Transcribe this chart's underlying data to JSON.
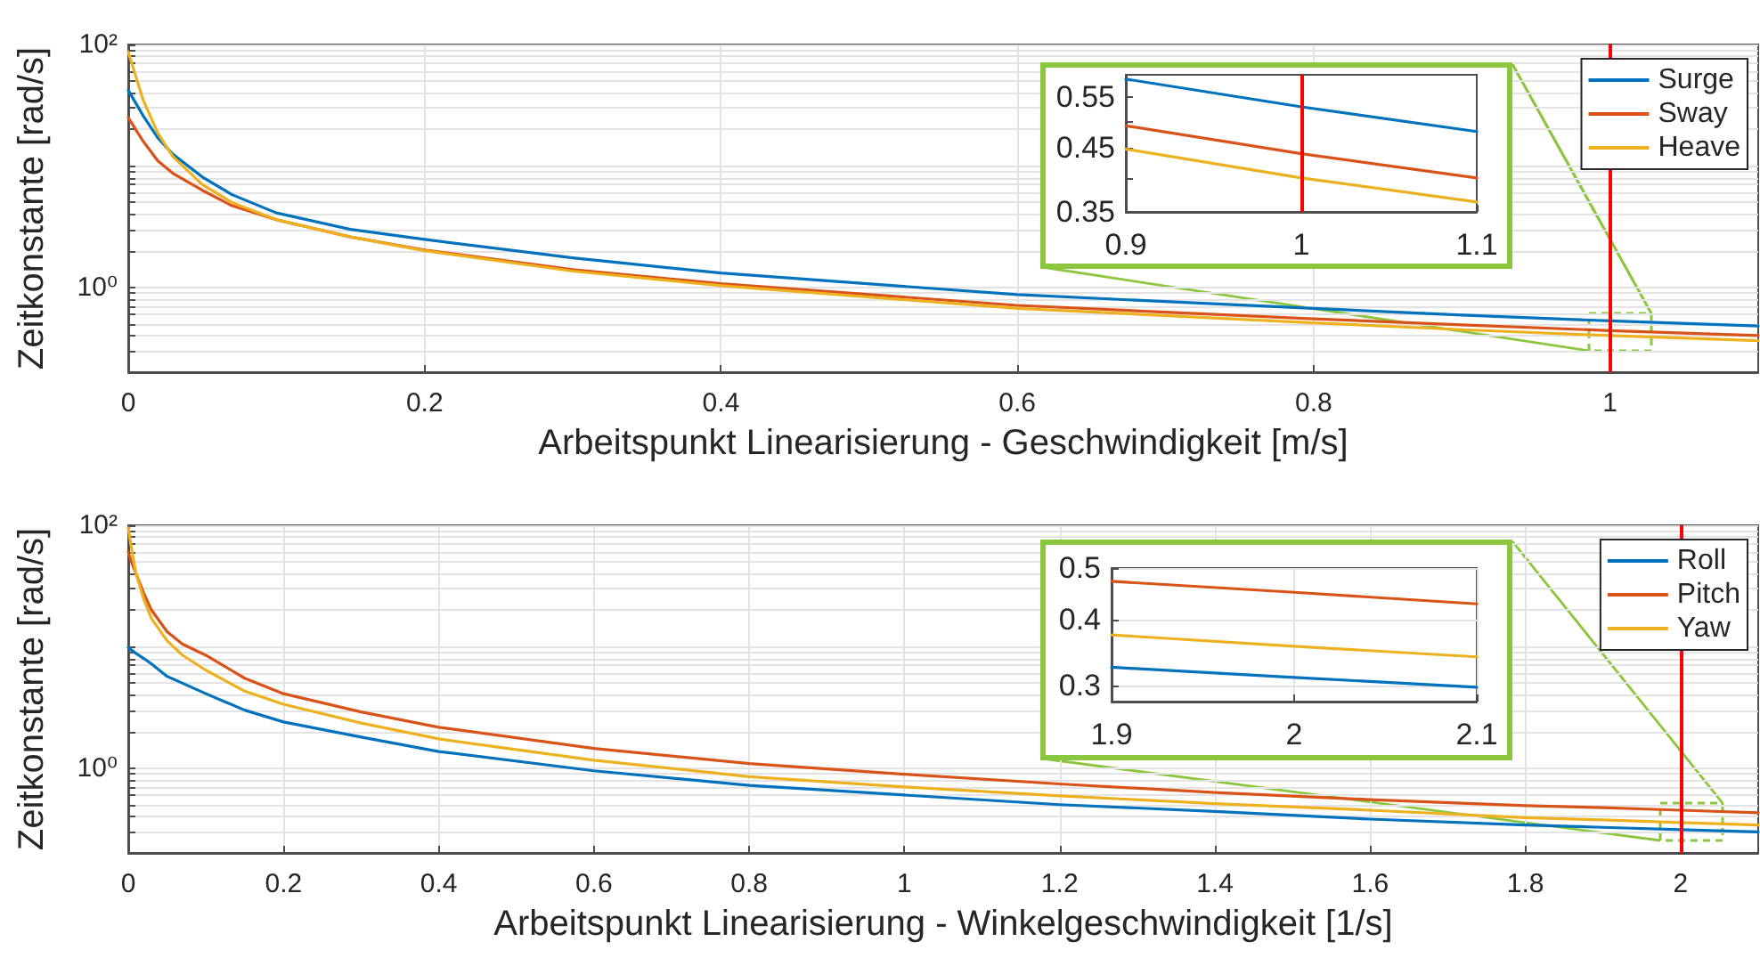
{
  "chart_data": [
    {
      "type": "line",
      "xlabel": "Arbeitspunkt Linearisierung - Geschwindigkeit [m/s]",
      "ylabel": "Zeitkonstante [rad/s]",
      "log": "y",
      "grid": true,
      "legend": "top right",
      "marker": "none",
      "line_style": "solid",
      "x": [
        0,
        0.005,
        0.01,
        0.02,
        0.03,
        0.05,
        0.07,
        0.1,
        0.15,
        0.2,
        0.3,
        0.4,
        0.6,
        0.8,
        0.9,
        1,
        1.1
      ],
      "series": [
        {
          "name": "Surge",
          "color": "#0072bd",
          "values": [
            42,
            33,
            26,
            17,
            12.5,
            8.1,
            5.8,
            4.1,
            3.0,
            2.48,
            1.75,
            1.31,
            0.87,
            0.67,
            0.59,
            0.529,
            0.48
          ]
        },
        {
          "name": "Sway",
          "color": "#d95319",
          "values": [
            25,
            20,
            16,
            11,
            8.7,
            6.3,
            4.7,
            3.6,
            2.6,
            2.03,
            1.4,
            1.07,
            0.71,
            0.55,
            0.491,
            0.44,
            0.4
          ]
        },
        {
          "name": "Heave",
          "color": "#edb120",
          "values": [
            87,
            55,
            35,
            18.6,
            12,
            7,
            5,
            3.6,
            2.6,
            2,
            1.36,
            1.03,
            0.67,
            0.51,
            0.448,
            0.4,
            0.364
          ]
        }
      ],
      "xlim": [
        0,
        1.1
      ],
      "xticks": [
        0,
        0.2,
        0.4,
        0.6,
        0.8,
        1
      ],
      "ylim": [
        0.2,
        100
      ],
      "yticks": [
        {
          "value": 0.2,
          "label": null
        },
        {
          "value": 0.3,
          "label": null
        },
        {
          "value": 0.4,
          "label": null
        },
        {
          "value": 0.5,
          "label": null
        },
        {
          "value": 0.6,
          "label": null
        },
        {
          "value": 0.7,
          "label": null
        },
        {
          "value": 0.8,
          "label": null
        },
        {
          "value": 0.9,
          "label": null
        },
        {
          "value": 1,
          "label": "10⁰"
        },
        {
          "value": 2,
          "label": null
        },
        {
          "value": 3,
          "label": null
        },
        {
          "value": 4,
          "label": null
        },
        {
          "value": 5,
          "label": null
        },
        {
          "value": 6,
          "label": null
        },
        {
          "value": 7,
          "label": null
        },
        {
          "value": 8,
          "label": null
        },
        {
          "value": 9,
          "label": null
        },
        {
          "value": 10,
          "label": null
        },
        {
          "value": 20,
          "label": null
        },
        {
          "value": 30,
          "label": null
        },
        {
          "value": 40,
          "label": null
        },
        {
          "value": 50,
          "label": null
        },
        {
          "value": 60,
          "label": null
        },
        {
          "value": 70,
          "label": null
        },
        {
          "value": 80,
          "label": null
        },
        {
          "value": 90,
          "label": null
        },
        {
          "value": 100,
          "label": "10²"
        }
      ],
      "ref_lines": [
        {
          "axis": "x",
          "value": 1,
          "color": "#ff0000"
        }
      ]
    },
    {
      "type": "line",
      "xlabel": "Arbeitspunkt Linearisierung - Winkelgeschwindigkeit [1/s]",
      "ylabel": "Zeitkonstante [rad/s]",
      "log": "y",
      "grid": true,
      "legend": "top right",
      "marker": "none",
      "line_style": "solid",
      "x": [
        0,
        0.005,
        0.01,
        0.02,
        0.03,
        0.05,
        0.07,
        0.1,
        0.15,
        0.2,
        0.3,
        0.4,
        0.6,
        0.8,
        1,
        1.2,
        1.4,
        1.6,
        1.8,
        1.9,
        2,
        2.1
      ],
      "series": [
        {
          "name": "Roll",
          "color": "#0072bd",
          "values": [
            9.8,
            9.3,
            8.8,
            8,
            7.2,
            5.7,
            5,
            4.1,
            3,
            2.4,
            1.8,
            1.37,
            0.95,
            0.72,
            0.6,
            0.5,
            0.44,
            0.38,
            0.34,
            0.325,
            0.311,
            0.298
          ]
        },
        {
          "name": "Pitch",
          "color": "#d95319",
          "values": [
            60,
            48,
            40,
            27.5,
            20,
            13.3,
            10.5,
            8.5,
            5.5,
            4.1,
            2.9,
            2.17,
            1.45,
            1.09,
            0.89,
            0.74,
            0.63,
            0.55,
            0.49,
            0.472,
            0.45,
            0.428
          ]
        },
        {
          "name": "Yaw",
          "color": "#edb120",
          "values": [
            95,
            60,
            40,
            24.6,
            17,
            11.2,
            8.5,
            6.4,
            4.3,
            3.36,
            2.35,
            1.74,
            1.16,
            0.85,
            0.7,
            0.59,
            0.51,
            0.45,
            0.39,
            0.374,
            0.356,
            0.34
          ]
        }
      ],
      "xlim": [
        0,
        2.1
      ],
      "xticks": [
        0,
        0.2,
        0.4,
        0.6,
        0.8,
        1,
        1.2,
        1.4,
        1.6,
        1.8,
        2
      ],
      "ylim": [
        0.2,
        100
      ],
      "yticks": [
        {
          "value": 0.2,
          "label": null
        },
        {
          "value": 0.3,
          "label": null
        },
        {
          "value": 0.4,
          "label": null
        },
        {
          "value": 0.5,
          "label": null
        },
        {
          "value": 0.6,
          "label": null
        },
        {
          "value": 0.7,
          "label": null
        },
        {
          "value": 0.8,
          "label": null
        },
        {
          "value": 0.9,
          "label": null
        },
        {
          "value": 1,
          "label": "10⁰"
        },
        {
          "value": 2,
          "label": null
        },
        {
          "value": 3,
          "label": null
        },
        {
          "value": 4,
          "label": null
        },
        {
          "value": 5,
          "label": null
        },
        {
          "value": 6,
          "label": null
        },
        {
          "value": 7,
          "label": null
        },
        {
          "value": 8,
          "label": null
        },
        {
          "value": 9,
          "label": null
        },
        {
          "value": 10,
          "label": null
        },
        {
          "value": 20,
          "label": null
        },
        {
          "value": 30,
          "label": null
        },
        {
          "value": 40,
          "label": null
        },
        {
          "value": 50,
          "label": null
        },
        {
          "value": 60,
          "label": null
        },
        {
          "value": 70,
          "label": null
        },
        {
          "value": 80,
          "label": null
        },
        {
          "value": 90,
          "label": null
        },
        {
          "value": 100,
          "label": "10²"
        }
      ],
      "ref_lines": [
        {
          "axis": "x",
          "value": 2,
          "color": "#ff0000"
        }
      ]
    },
    {
      "type": "line",
      "log": "y",
      "marker": "none",
      "line_style": "solid",
      "x": [
        0.9,
        1,
        1.1
      ],
      "series": [
        {
          "color": "#0072bd",
          "values": [
            0.59,
            0.529,
            0.48
          ]
        },
        {
          "color": "#d95319",
          "values": [
            0.491,
            0.44,
            0.4
          ]
        },
        {
          "color": "#edb120",
          "values": [
            0.448,
            0.4,
            0.364
          ]
        }
      ],
      "xlim": [
        0.9,
        1.1
      ],
      "xticks": [
        0.9,
        1,
        1.1
      ],
      "ylim": [
        0.35,
        0.6
      ],
      "yticks": [
        0.35,
        {
          "value": 0.4,
          "label": null
        },
        0.45,
        {
          "value": 0.5,
          "label": null
        },
        0.55
      ],
      "ref_lines": [
        {
          "axis": "x",
          "value": 1,
          "color": "#ff0000"
        }
      ]
    },
    {
      "type": "line",
      "log": "y",
      "grid": true,
      "marker": "none",
      "line_style": "solid",
      "x": [
        1.9,
        2,
        2.1
      ],
      "series": [
        {
          "color": "#0072bd",
          "values": [
            0.325,
            0.311,
            0.298
          ]
        },
        {
          "color": "#d95319",
          "values": [
            0.472,
            0.45,
            0.428
          ]
        },
        {
          "color": "#edb120",
          "values": [
            0.374,
            0.356,
            0.34
          ]
        }
      ],
      "xlim": [
        1.9,
        2.1
      ],
      "xticks": [
        1.9,
        2,
        2.1
      ],
      "ylim": [
        0.28,
        0.5
      ],
      "yticks": [
        0.3,
        0.4,
        0.5
      ]
    }
  ]
}
